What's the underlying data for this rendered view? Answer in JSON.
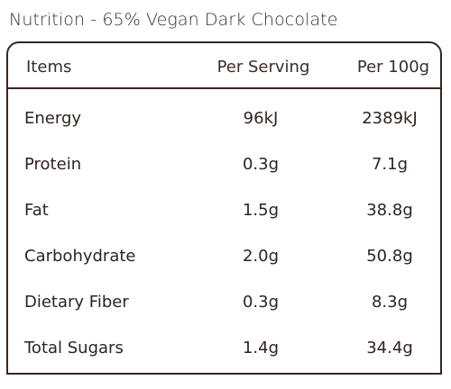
{
  "title": "Nutrition - 65% Vegan Dark Chocolate",
  "table": {
    "headers": {
      "items": "Items",
      "per_serving": "Per Serving",
      "per_100g": "Per 100g"
    },
    "rows": [
      {
        "item": "Energy",
        "per_serving": "96kJ",
        "per_100g": "2389kJ"
      },
      {
        "item": "Protein",
        "per_serving": "0.3g",
        "per_100g": "7.1g"
      },
      {
        "item": "Fat",
        "per_serving": "1.5g",
        "per_100g": "38.8g"
      },
      {
        "item": "Carbohydrate",
        "per_serving": "2.0g",
        "per_100g": "50.8g"
      },
      {
        "item": "Dietary Fiber",
        "per_serving": "0.3g",
        "per_100g": "8.3g"
      },
      {
        "item": "Total Sugars",
        "per_serving": "1.4g",
        "per_100g": "34.4g"
      }
    ]
  },
  "colors": {
    "border": "#3b2420",
    "text": "#2f2320"
  }
}
